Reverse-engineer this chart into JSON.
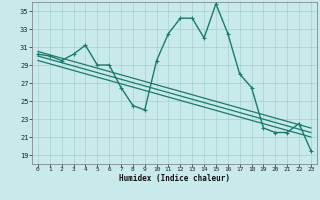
{
  "title": "",
  "xlabel": "Humidex (Indice chaleur)",
  "ylabel": "",
  "bg_color": "#c8eaea",
  "grid_color": "#a8d0d0",
  "line_color": "#1a7a6e",
  "xlim": [
    -0.5,
    23.5
  ],
  "ylim": [
    18,
    36
  ],
  "yticks": [
    19,
    21,
    23,
    25,
    27,
    29,
    31,
    33,
    35
  ],
  "xticks": [
    0,
    1,
    2,
    3,
    4,
    5,
    6,
    7,
    8,
    9,
    10,
    11,
    12,
    13,
    14,
    15,
    16,
    17,
    18,
    19,
    20,
    21,
    22,
    23
  ],
  "main_x": [
    0,
    1,
    2,
    3,
    4,
    5,
    6,
    7,
    8,
    9,
    10,
    11,
    12,
    13,
    14,
    15,
    16,
    17,
    18,
    19,
    20,
    21,
    22,
    23
  ],
  "main_y": [
    30.2,
    30.0,
    29.5,
    30.2,
    31.2,
    29.0,
    29.0,
    26.5,
    24.5,
    24.0,
    29.5,
    32.5,
    34.2,
    34.2,
    32.0,
    35.8,
    32.5,
    28.0,
    26.5,
    22.0,
    21.5,
    21.5,
    22.5,
    19.5
  ],
  "trend1_x": [
    0,
    23
  ],
  "trend1_y": [
    30.5,
    22.0
  ],
  "trend2_x": [
    0,
    23
  ],
  "trend2_y": [
    30.0,
    21.5
  ],
  "trend3_x": [
    0,
    23
  ],
  "trend3_y": [
    29.5,
    21.0
  ],
  "marker_size": 3,
  "line_width": 1.0
}
